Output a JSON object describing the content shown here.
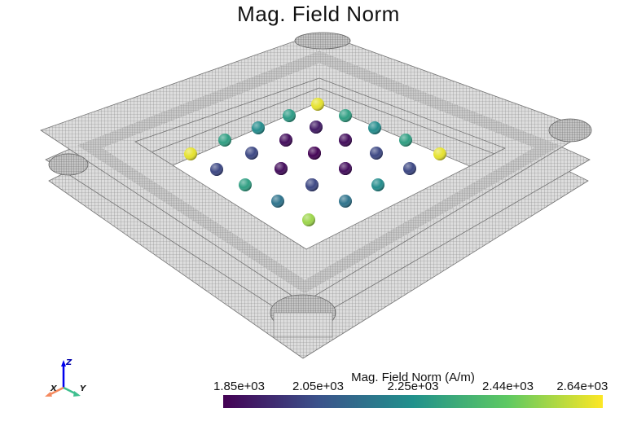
{
  "title": "Mag. Field Norm",
  "colorbar": {
    "title": "Mag. Field Norm (A/m)",
    "ticks": [
      "1.85e+03",
      "2.05e+03",
      "2.25e+03",
      "2.44e+03",
      "2.64e+03"
    ],
    "min": 1850,
    "max": 2640,
    "colormap": "viridis",
    "stops": [
      "#440154",
      "#3b528b",
      "#21918c",
      "#5ec962",
      "#fde725"
    ]
  },
  "orientation_axes": {
    "x": "X",
    "y": "Y",
    "z": "Z"
  },
  "colors": {
    "mesh": "#444444",
    "x_axis": "#f58a5f",
    "y_axis": "#3fbf8f",
    "z_axis": "#0000ee"
  },
  "spheres": [
    {
      "row": 0,
      "col": 0,
      "value": 2610
    },
    {
      "row": 1,
      "col": 0,
      "value": 2280
    },
    {
      "row": 1,
      "col": 1,
      "value": 2020
    },
    {
      "row": 1,
      "col": 2,
      "value": 2290
    },
    {
      "row": 2,
      "col": 0,
      "value": 2230
    },
    {
      "row": 2,
      "col": 1,
      "value": 1935
    },
    {
      "row": 2,
      "col": 2,
      "value": 1910
    },
    {
      "row": 2,
      "col": 3,
      "value": 1935
    },
    {
      "row": 2,
      "col": 4,
      "value": 2230
    },
    {
      "row": 3,
      "col": 0,
      "value": 2290
    },
    {
      "row": 3,
      "col": 1,
      "value": 2020
    },
    {
      "row": 3,
      "col": 2,
      "value": 1880
    },
    {
      "row": 3,
      "col": 3,
      "value": 1860
    },
    {
      "row": 3,
      "col": 4,
      "value": 1880
    },
    {
      "row": 3,
      "col": 5,
      "value": 2020
    },
    {
      "row": 3,
      "col": 6,
      "value": 2290
    },
    {
      "row": 4,
      "col": 0,
      "value": 2610
    },
    {
      "row": 4,
      "col": 1,
      "value": 2020
    },
    {
      "row": 4,
      "col": 2,
      "value": 1860
    },
    {
      "row": 4,
      "col": 3,
      "value": 1855
    },
    {
      "row": 4,
      "col": 4,
      "value": 1860
    },
    {
      "row": 4,
      "col": 5,
      "value": 2020
    },
    {
      "row": 4,
      "col": 6,
      "value": 2610
    },
    {
      "row": 5,
      "col": 0,
      "value": 2290
    },
    {
      "row": 5,
      "col": 1,
      "value": 1960
    },
    {
      "row": 5,
      "col": 2,
      "value": 1880
    },
    {
      "row": 5,
      "col": 3,
      "value": 1880
    },
    {
      "row": 5,
      "col": 4,
      "value": 2230
    },
    {
      "row": 6,
      "col": 0,
      "value": 2150
    },
    {
      "row": 6,
      "col": 1,
      "value": 2020
    },
    {
      "row": 6,
      "col": 2,
      "value": 2150
    },
    {
      "row": 7,
      "col": 0,
      "value": 2520
    }
  ]
}
